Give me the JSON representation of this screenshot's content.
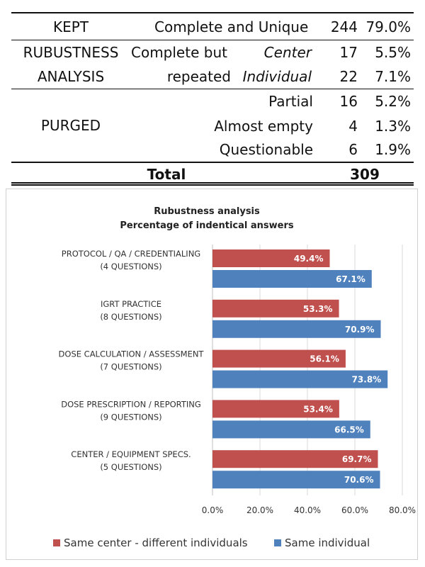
{
  "table": {
    "kept": {
      "label": "KEPT",
      "desc": "Complete and Unique",
      "count": "244",
      "pct": "79.0%"
    },
    "robustness": {
      "label_line1": "RUBUSTNESS",
      "label_line2": "ANALYSIS",
      "desc_line1": "Complete but",
      "desc_line2": "repeated",
      "rows": [
        {
          "sub": "Center",
          "count": "17",
          "pct": "5.5%"
        },
        {
          "sub": "Individual",
          "count": "22",
          "pct": "7.1%"
        }
      ]
    },
    "purged": {
      "label": "PURGED",
      "rows": [
        {
          "desc": "Partial",
          "count": "16",
          "pct": "5.2%"
        },
        {
          "desc": "Almost empty",
          "count": "4",
          "pct": "1.3%"
        },
        {
          "desc": "Questionable",
          "count": "6",
          "pct": "1.9%"
        }
      ]
    },
    "total": {
      "label": "Total",
      "count": "309"
    }
  },
  "chart_data": {
    "type": "bar",
    "orientation": "horizontal",
    "title": "Rubustness analysis",
    "subtitle": "Percentage of indentical answers",
    "categories": [
      [
        "PROTOCOL / QA / CREDENTIALING",
        "(4 QUESTIONS)"
      ],
      [
        "IGRT PRACTICE",
        "(8 QUESTIONS)"
      ],
      [
        "DOSE CALCULATION / ASSESSMENT",
        "(7 QUESTIONS)"
      ],
      [
        "DOSE PRESCRIPTION / REPORTING",
        "(9 QUESTIONS)"
      ],
      [
        "CENTER / EQUIPMENT SPECS.",
        "(5 QUESTIONS)"
      ]
    ],
    "series": [
      {
        "name": "Same center - different individuals",
        "color": "#c0504d",
        "values": [
          49.4,
          53.3,
          56.1,
          53.4,
          69.7
        ],
        "labels": [
          "49.4%",
          "53.3%",
          "56.1%",
          "53.4%",
          "69.7%"
        ]
      },
      {
        "name": "Same individual",
        "color": "#4f81bd",
        "values": [
          67.1,
          70.9,
          73.8,
          66.5,
          70.6
        ],
        "labels": [
          "67.1%",
          "70.9%",
          "73.8%",
          "66.5%",
          "70.6%"
        ]
      }
    ],
    "xlim": [
      0,
      80
    ],
    "xticks": [
      0,
      20,
      40,
      60,
      80
    ],
    "xtick_labels": [
      "0.0%",
      "20.0%",
      "40.0%",
      "60.0%",
      "80.0%"
    ],
    "grid": true,
    "legend": "bottom"
  }
}
